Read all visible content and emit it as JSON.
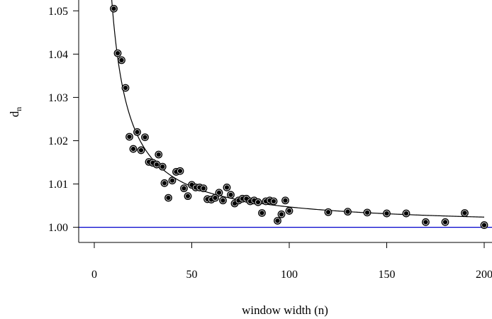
{
  "chart_data": {
    "type": "scatter",
    "title": "",
    "xlabel": "window width (n)",
    "ylabel": {
      "base": "d",
      "subscript": "n"
    },
    "xlim": [
      -8,
      204
    ],
    "ylim": [
      0.9965,
      1.0525
    ],
    "x_ticks": [
      0,
      50,
      100,
      150,
      200
    ],
    "x_tick_labels": [
      "0",
      "50",
      "100",
      "150",
      "200"
    ],
    "y_ticks": [
      1.0,
      1.01,
      1.02,
      1.03,
      1.04,
      1.05
    ],
    "y_tick_labels": [
      "1.00",
      "1.01",
      "1.02",
      "1.03",
      "1.04",
      "1.05"
    ],
    "grid": false,
    "reference_line": {
      "y": 1.0,
      "color": "#0000cc"
    },
    "fit_curve": {
      "form": "1 + a/n",
      "a": 0.47,
      "color": "#000000"
    },
    "marker_color": "#000000",
    "points": [
      [
        10,
        1.0505
      ],
      [
        12,
        1.0402
      ],
      [
        14,
        1.0386
      ],
      [
        16,
        1.0322
      ],
      [
        18,
        1.0209
      ],
      [
        20,
        1.0181
      ],
      [
        22,
        1.022
      ],
      [
        24,
        1.0178
      ],
      [
        26,
        1.0208
      ],
      [
        28,
        1.0151
      ],
      [
        30,
        1.0149
      ],
      [
        32,
        1.0145
      ],
      [
        33,
        1.0168
      ],
      [
        35,
        1.014
      ],
      [
        36,
        1.0102
      ],
      [
        38,
        1.0068
      ],
      [
        40,
        1.0108
      ],
      [
        42,
        1.0128
      ],
      [
        44,
        1.013
      ],
      [
        46,
        1.009
      ],
      [
        48,
        1.0072
      ],
      [
        50,
        1.0098
      ],
      [
        52,
        1.0092
      ],
      [
        54,
        1.0092
      ],
      [
        56,
        1.009
      ],
      [
        58,
        1.0065
      ],
      [
        60,
        1.0064
      ],
      [
        62,
        1.0068
      ],
      [
        64,
        1.008
      ],
      [
        66,
        1.0062
      ],
      [
        68,
        1.0092
      ],
      [
        70,
        1.0075
      ],
      [
        72,
        1.0055
      ],
      [
        74,
        1.0062
      ],
      [
        76,
        1.0066
      ],
      [
        78,
        1.0066
      ],
      [
        80,
        1.006
      ],
      [
        82,
        1.0062
      ],
      [
        84,
        1.0058
      ],
      [
        86,
        1.0033
      ],
      [
        88,
        1.006
      ],
      [
        90,
        1.0062
      ],
      [
        92,
        1.006
      ],
      [
        94,
        1.0015
      ],
      [
        96,
        1.003
      ],
      [
        98,
        1.0062
      ],
      [
        100,
        1.0038
      ],
      [
        120,
        1.0035
      ],
      [
        130,
        1.0036
      ],
      [
        140,
        1.0034
      ],
      [
        150,
        1.0032
      ],
      [
        160,
        1.0032
      ],
      [
        170,
        1.0012
      ],
      [
        180,
        1.0012
      ],
      [
        190,
        1.0033
      ],
      [
        200,
        1.0005
      ]
    ]
  }
}
